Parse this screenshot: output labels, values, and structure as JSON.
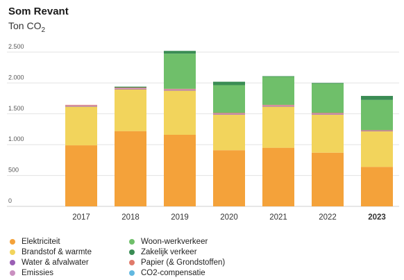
{
  "header": {
    "title": "Som Revant",
    "subtitle_base": "Ton CO",
    "subtitle_sub": "2"
  },
  "chart_data": {
    "type": "bar",
    "stacked": true,
    "categories": [
      "2017",
      "2018",
      "2019",
      "2020",
      "2021",
      "2022",
      "2023"
    ],
    "highlighted_category": "2023",
    "ylim": [
      0,
      2500
    ],
    "y_ticks": [
      0,
      500,
      1000,
      1500,
      2000,
      2500
    ],
    "y_tick_labels": [
      "0",
      "500",
      "1.000",
      "1.500",
      "2.000",
      "2.500"
    ],
    "grid": true,
    "legend_position": "bottom",
    "series": [
      {
        "name": "Elektriciteit",
        "color": "#f4a23a",
        "values": [
          990,
          1220,
          1160,
          910,
          950,
          870,
          640
        ]
      },
      {
        "name": "Brandstof & warmte",
        "color": "#f2d45c",
        "values": [
          630,
          680,
          720,
          580,
          670,
          620,
          580
        ]
      },
      {
        "name": "Water & afvalwater",
        "color": "#9a5fb4",
        "values": [
          5,
          5,
          5,
          5,
          5,
          5,
          5
        ]
      },
      {
        "name": "Emissies",
        "color": "#c990c0",
        "values": [
          10,
          10,
          10,
          10,
          10,
          10,
          5
        ]
      },
      {
        "name": "Papier (& Grondstoffen)",
        "color": "#e07a6a",
        "values": [
          10,
          10,
          10,
          10,
          10,
          10,
          5
        ]
      },
      {
        "name": "CO2-compensatie",
        "color": "#62b8e0",
        "values": [
          0,
          0,
          0,
          0,
          0,
          0,
          0
        ]
      },
      {
        "name": "Woon-werkverkeer",
        "color": "#6fbf6a",
        "values": [
          0,
          0,
          570,
          450,
          460,
          480,
          490
        ]
      },
      {
        "name": "Zakelijk verkeer",
        "color": "#3a8c54",
        "values": [
          0,
          15,
          45,
          55,
          5,
          5,
          65
        ]
      }
    ]
  },
  "legend": {
    "items": [
      {
        "label": "Elektriciteit",
        "color": "#f4a23a"
      },
      {
        "label": "Brandstof & warmte",
        "color": "#f2d45c"
      },
      {
        "label": "Water & afvalwater",
        "color": "#9a5fb4"
      },
      {
        "label": "Emissies",
        "color": "#c990c0"
      },
      {
        "label": "Woon-werkverkeer",
        "color": "#6fbf6a"
      },
      {
        "label": "Zakelijk verkeer",
        "color": "#3a8c54"
      },
      {
        "label": "Papier (& Grondstoffen)",
        "color": "#e07a6a"
      },
      {
        "label": "CO2-compensatie",
        "color": "#62b8e0"
      }
    ]
  }
}
